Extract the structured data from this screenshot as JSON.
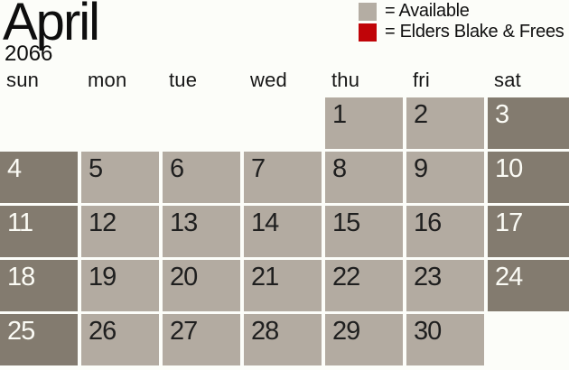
{
  "title": {
    "month": "April",
    "year": "2066"
  },
  "legend": {
    "items": [
      {
        "name": "available",
        "label": "= Available",
        "color": "#b4ada3"
      },
      {
        "name": "elders-blake-frees",
        "label": "= Elders Blake & Frees",
        "color": "#c00408"
      }
    ]
  },
  "calendar": {
    "day_headers": [
      "sun",
      "mon",
      "tue",
      "wed",
      "thu",
      "fri",
      "sat"
    ],
    "weeks": [
      [
        null,
        null,
        null,
        null,
        {
          "day": 1,
          "variant": "weekday"
        },
        {
          "day": 2,
          "variant": "weekday"
        },
        {
          "day": 3,
          "variant": "weekend"
        }
      ],
      [
        {
          "day": 4,
          "variant": "weekend"
        },
        {
          "day": 5,
          "variant": "weekday"
        },
        {
          "day": 6,
          "variant": "weekday"
        },
        {
          "day": 7,
          "variant": "weekday"
        },
        {
          "day": 8,
          "variant": "weekday"
        },
        {
          "day": 9,
          "variant": "weekday"
        },
        {
          "day": 10,
          "variant": "weekend"
        }
      ],
      [
        {
          "day": 11,
          "variant": "weekend"
        },
        {
          "day": 12,
          "variant": "weekday"
        },
        {
          "day": 13,
          "variant": "weekday"
        },
        {
          "day": 14,
          "variant": "weekday"
        },
        {
          "day": 15,
          "variant": "weekday"
        },
        {
          "day": 16,
          "variant": "weekday"
        },
        {
          "day": 17,
          "variant": "weekend"
        }
      ],
      [
        {
          "day": 18,
          "variant": "weekend"
        },
        {
          "day": 19,
          "variant": "weekday"
        },
        {
          "day": 20,
          "variant": "weekday"
        },
        {
          "day": 21,
          "variant": "weekday"
        },
        {
          "day": 22,
          "variant": "weekday"
        },
        {
          "day": 23,
          "variant": "weekday"
        },
        {
          "day": 24,
          "variant": "weekend"
        }
      ],
      [
        {
          "day": 25,
          "variant": "weekend"
        },
        {
          "day": 26,
          "variant": "weekday"
        },
        {
          "day": 27,
          "variant": "weekday"
        },
        {
          "day": 28,
          "variant": "weekday"
        },
        {
          "day": 29,
          "variant": "weekday"
        },
        {
          "day": 30,
          "variant": "weekday"
        },
        null
      ]
    ]
  },
  "colors": {
    "background": "#fcfdf9",
    "available_cell": "#b3aba1",
    "weekend_cell": "#837b6f",
    "cell_text_dark": "#1f1f1f",
    "cell_text_light": "#fbfbf5",
    "heading_text": "#161616"
  }
}
